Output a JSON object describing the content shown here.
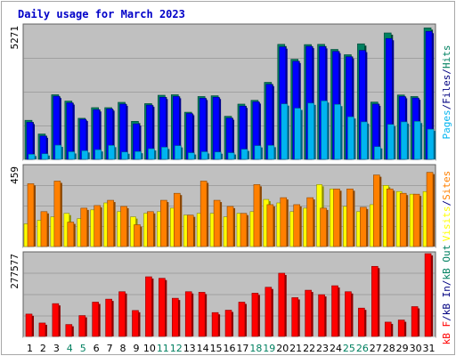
{
  "header": {
    "title": "Daily usage for March 2023"
  },
  "colors": {
    "pages": "#0000ff",
    "pages_shadow": "#008060",
    "files": "#00b4f0",
    "hits": "#008060",
    "visits": "#ffff00",
    "sites": "#ff8000",
    "kbout": "#008060",
    "kbin": "#000080",
    "kbf": "#ff0000",
    "weekend": "#008060",
    "weekday": "#000000"
  },
  "chart_data": [
    {
      "type": "bar",
      "name": "hits-files-pages",
      "ymax_label": "5271",
      "ylim": [
        0,
        5271
      ],
      "categories": [
        "1",
        "2",
        "3",
        "4",
        "5",
        "6",
        "7",
        "8",
        "9",
        "10",
        "11",
        "12",
        "13",
        "14",
        "15",
        "16",
        "17",
        "18",
        "19",
        "20",
        "21",
        "22",
        "23",
        "24",
        "25",
        "26",
        "27",
        "28",
        "29",
        "30",
        "31"
      ],
      "legend": [
        {
          "text": "Pages",
          "color_key": "files"
        },
        {
          "text": "/",
          "color_key": "kbin"
        },
        {
          "text": "Files",
          "color_key": "kbin"
        },
        {
          "text": "/",
          "color_key": "kbin"
        },
        {
          "text": "Hits",
          "color_key": "hits"
        }
      ],
      "series": [
        {
          "name": "Hits",
          "values": [
            1540,
            1000,
            2550,
            2300,
            1620,
            2040,
            2040,
            2250,
            1500,
            2200,
            2530,
            2550,
            1860,
            2480,
            2510,
            1700,
            2180,
            2330,
            3040,
            4540,
            3950,
            4530,
            4540,
            4340,
            4130,
            4560,
            2260,
            4990,
            2540,
            2480,
            5190
          ]
        },
        {
          "name": "Files",
          "values": [
            1460,
            920,
            2490,
            2230,
            1580,
            1960,
            1990,
            2180,
            1400,
            2140,
            2450,
            2480,
            1810,
            2410,
            2450,
            1630,
            2100,
            2270,
            2960,
            4440,
            3870,
            4460,
            4450,
            4260,
            4050,
            4300,
            2180,
            4770,
            2480,
            2420,
            5050
          ]
        },
        {
          "name": "Pages",
          "values": [
            200,
            220,
            560,
            300,
            340,
            380,
            550,
            290,
            310,
            420,
            480,
            540,
            260,
            300,
            290,
            260,
            400,
            540,
            550,
            2190,
            2020,
            2220,
            2310,
            2170,
            1680,
            1480,
            500,
            1380,
            1480,
            1500,
            1190
          ]
        }
      ]
    },
    {
      "type": "bar",
      "name": "visits-sites",
      "ymax_label": "459",
      "ylim": [
        0,
        459
      ],
      "categories": [
        "1",
        "2",
        "3",
        "4",
        "5",
        "6",
        "7",
        "8",
        "9",
        "10",
        "11",
        "12",
        "13",
        "14",
        "15",
        "16",
        "17",
        "18",
        "19",
        "20",
        "21",
        "22",
        "23",
        "24",
        "25",
        "26",
        "27",
        "28",
        "29",
        "30",
        "31"
      ],
      "legend": [
        {
          "text": "Visits",
          "color_key": "visits"
        },
        {
          "text": "/",
          "color_key": "kbin"
        },
        {
          "text": "Sites",
          "color_key": "sites"
        }
      ],
      "series": [
        {
          "name": "Visits",
          "values": [
            130,
            150,
            170,
            190,
            160,
            210,
            250,
            200,
            170,
            190,
            200,
            220,
            180,
            190,
            190,
            170,
            190,
            200,
            270,
            250,
            200,
            220,
            355,
            330,
            230,
            200,
            240,
            350,
            315,
            300,
            315
          ]
        },
        {
          "name": "Sites",
          "values": [
            360,
            200,
            375,
            140,
            220,
            235,
            265,
            230,
            125,
            200,
            265,
            305,
            180,
            375,
            265,
            230,
            190,
            355,
            240,
            280,
            240,
            280,
            220,
            330,
            330,
            225,
            410,
            330,
            305,
            300,
            425
          ]
        }
      ]
    },
    {
      "type": "bar",
      "name": "traffic",
      "ymax_label": "277577",
      "ylim": [
        0,
        277577
      ],
      "categories": [
        "1",
        "2",
        "3",
        "4",
        "5",
        "6",
        "7",
        "8",
        "9",
        "10",
        "11",
        "12",
        "13",
        "14",
        "15",
        "16",
        "17",
        "18",
        "19",
        "20",
        "21",
        "22",
        "23",
        "24",
        "25",
        "26",
        "27",
        "28",
        "29",
        "30",
        "31"
      ],
      "legend": [
        {
          "text": "kB F",
          "color_key": "kbf"
        },
        {
          "text": "/",
          "color_key": "kbin"
        },
        {
          "text": "kB In",
          "color_key": "kbin"
        },
        {
          "text": "/",
          "color_key": "kbin"
        },
        {
          "text": "kB Out",
          "color_key": "kbout"
        }
      ],
      "series": [
        {
          "name": "kB F",
          "values": [
            75000,
            45000,
            110000,
            40000,
            70000,
            115000,
            125000,
            150000,
            87000,
            200000,
            195000,
            128000,
            150000,
            148000,
            80000,
            88000,
            115000,
            145000,
            165000,
            212000,
            130000,
            155000,
            140000,
            170000,
            150000,
            95000,
            235000,
            48000,
            55000,
            100000,
            277577
          ]
        }
      ]
    }
  ]
}
